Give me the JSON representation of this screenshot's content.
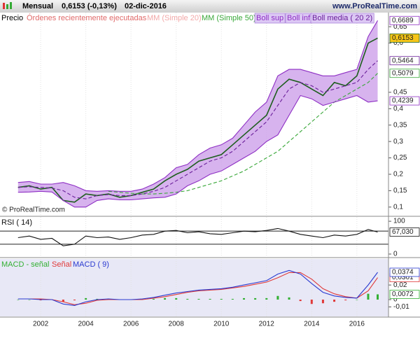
{
  "header": {
    "period": "Mensual",
    "quote": "0,6153 (-0,13%)",
    "date": "02-dic-2016",
    "site": "www.ProRealTime.com",
    "copyright": "© ProRealTime.com",
    "orders": "Órdenes recientemente ejecutadas",
    "mm20": "MM (Simple 20)"
  },
  "chart_data": [
    {
      "type": "line",
      "x": [
        2001,
        2001.5,
        2002,
        2002.5,
        2003,
        2003.5,
        2004,
        2004.5,
        2005,
        2005.5,
        2006,
        2006.5,
        2007,
        2007.5,
        2008,
        2008.5,
        2009,
        2009.5,
        2010,
        2010.5,
        2011,
        2011.5,
        2012,
        2012.5,
        2013,
        2013.5,
        2014,
        2014.5,
        2015,
        2015.5,
        2016,
        2016.5,
        2016.92
      ],
      "xlim": [
        2000.2,
        2017.4
      ],
      "ylim": [
        0.074,
        0.693
      ],
      "yticks": [
        {
          "value": 0.1,
          "label": "0,1"
        },
        {
          "value": 0.15,
          "label": "0,15"
        },
        {
          "value": 0.2,
          "label": "0,2"
        },
        {
          "value": 0.25,
          "label": "0,25"
        },
        {
          "value": 0.3,
          "label": "0,3"
        },
        {
          "value": 0.35,
          "label": "0,35"
        },
        {
          "value": 0.4,
          "label": "0,4"
        },
        {
          "value": 0.45,
          "label": "0,45"
        },
        {
          "value": 0.6,
          "label": "0,6"
        },
        {
          "value": 0.65,
          "label": "0,65"
        }
      ],
      "series": [
        {
          "name": "Precio",
          "color": "#1d5e1d",
          "label_bg": "#f5c518",
          "last_label": "0,6153",
          "values": [
            0.16,
            0.165,
            0.155,
            0.16,
            0.12,
            0.115,
            0.14,
            0.135,
            0.14,
            0.13,
            0.135,
            0.145,
            0.155,
            0.18,
            0.2,
            0.215,
            0.24,
            0.25,
            0.26,
            0.29,
            0.32,
            0.35,
            0.38,
            0.46,
            0.49,
            0.48,
            0.46,
            0.44,
            0.48,
            0.47,
            0.5,
            0.6,
            0.6153
          ]
        },
        {
          "name": "MM (Simple 50)",
          "color": "#3aa83a",
          "label_bg": "#ffffff",
          "last_label": "0,5079",
          "dashed": true,
          "values": [
            null,
            null,
            null,
            null,
            null,
            null,
            null,
            null,
            0.148,
            0.145,
            0.142,
            0.14,
            0.14,
            0.142,
            0.145,
            0.15,
            0.16,
            0.17,
            0.18,
            0.195,
            0.21,
            0.23,
            0.25,
            0.27,
            0.3,
            0.33,
            0.36,
            0.39,
            0.42,
            0.44,
            0.46,
            0.48,
            0.5079
          ]
        },
        {
          "name": "Boll sup",
          "color": "#8e2fc4",
          "label_bg": "#ffffff",
          "last_label": "0,6689",
          "values": [
            0.175,
            0.178,
            0.17,
            0.17,
            0.175,
            0.165,
            0.15,
            0.148,
            0.15,
            0.148,
            0.148,
            0.155,
            0.17,
            0.19,
            0.22,
            0.23,
            0.26,
            0.28,
            0.29,
            0.31,
            0.35,
            0.39,
            0.42,
            0.5,
            0.52,
            0.52,
            0.51,
            0.5,
            0.5,
            0.51,
            0.52,
            0.62,
            0.6689
          ]
        },
        {
          "name": "Boll inf",
          "color": "#8e2fc4",
          "label_bg": "#ffffff",
          "last_label": "0,4239",
          "values": [
            0.145,
            0.146,
            0.148,
            0.146,
            0.12,
            0.1,
            0.1,
            0.12,
            0.125,
            0.122,
            0.122,
            0.125,
            0.128,
            0.13,
            0.14,
            0.165,
            0.18,
            0.2,
            0.21,
            0.23,
            0.25,
            0.27,
            0.3,
            0.32,
            0.38,
            0.44,
            0.43,
            0.41,
            0.42,
            0.43,
            0.44,
            0.42,
            0.4239
          ]
        },
        {
          "name": "Boll media ( 20 2)",
          "color": "#6a1f9a",
          "label_bg": "#ffffff",
          "last_label": "0,5464",
          "dashed": true,
          "values": [
            0.16,
            0.162,
            0.16,
            0.158,
            0.15,
            0.13,
            0.125,
            0.135,
            0.138,
            0.135,
            0.135,
            0.14,
            0.148,
            0.16,
            0.18,
            0.2,
            0.22,
            0.24,
            0.25,
            0.27,
            0.3,
            0.33,
            0.36,
            0.41,
            0.46,
            0.48,
            0.47,
            0.45,
            0.46,
            0.47,
            0.48,
            0.52,
            0.5464
          ]
        }
      ],
      "band_color": "#c99ae8"
    },
    {
      "type": "line",
      "x": [
        2001,
        2001.5,
        2002,
        2002.5,
        2003,
        2003.5,
        2004,
        2004.5,
        2005,
        2005.5,
        2006,
        2006.5,
        2007,
        2007.5,
        2008,
        2008.5,
        2009,
        2009.5,
        2010,
        2010.5,
        2011,
        2011.5,
        2012,
        2012.5,
        2013,
        2013.5,
        2014,
        2014.5,
        2015,
        2015.5,
        2016,
        2016.5,
        2016.92
      ],
      "xlim": [
        2000.2,
        2017.4
      ],
      "ylim": [
        -6.5,
        113
      ],
      "yticks": [
        0,
        100
      ],
      "levels": [
        30,
        70
      ],
      "series": [
        {
          "name": "RSI ( 14)",
          "color": "#111111",
          "label_bg": "#ffffff",
          "last_label": "67,030",
          "values": [
            50,
            55,
            45,
            48,
            25,
            30,
            55,
            50,
            52,
            45,
            50,
            58,
            60,
            70,
            72,
            65,
            68,
            62,
            60,
            65,
            70,
            68,
            72,
            78,
            70,
            60,
            55,
            50,
            58,
            55,
            60,
            75,
            67.03
          ]
        }
      ]
    },
    {
      "type": "macd",
      "x": [
        2001,
        2001.5,
        2002,
        2002.5,
        2003,
        2003.5,
        2004,
        2004.5,
        2005,
        2005.5,
        2006,
        2006.5,
        2007,
        2007.5,
        2008,
        2008.5,
        2009,
        2009.5,
        2010,
        2010.5,
        2011,
        2011.5,
        2012,
        2012.5,
        2013,
        2013.5,
        2014,
        2014.5,
        2015,
        2015.5,
        2016,
        2016.5,
        2016.92
      ],
      "xlim": [
        2000.2,
        2017.4
      ],
      "xticks": [
        2002,
        2004,
        2006,
        2008,
        2010,
        2012,
        2014,
        2016
      ],
      "ylim": [
        -0.023,
        0.0556
      ],
      "yticks": [
        {
          "value": 0.02,
          "label": "0,02"
        },
        {
          "value": 0,
          "label": "0"
        },
        {
          "value": -0.01,
          "label": "-0,01"
        }
      ],
      "series": [
        {
          "name": "MACD - señal",
          "color": "#33b033",
          "negative_color": "#e03a3a",
          "label_bg": "#ffffff",
          "last_label": "0,0072",
          "bars": true,
          "values": [
            0,
            0,
            -0.001,
            0,
            -0.003,
            -0.001,
            0.002,
            0.001,
            0.001,
            0,
            0,
            0.001,
            0.001,
            0.002,
            0.002,
            0.001,
            0.001,
            0.001,
            0.001,
            0.001,
            0.002,
            0.002,
            0.002,
            0.005,
            0.003,
            -0.002,
            -0.006,
            -0.005,
            -0.003,
            -0.001,
            0,
            0.008,
            0.0072
          ]
        },
        {
          "name": "Señal",
          "color": "#e03a3a",
          "label_bg": "#ffffff",
          "last_label": "0,0301",
          "values": [
            0.001,
            0.001,
            0.001,
            0,
            -0.003,
            -0.007,
            -0.005,
            -0.001,
            0,
            0,
            0,
            0,
            0.002,
            0.004,
            0.007,
            0.01,
            0.012,
            0.013,
            0.014,
            0.016,
            0.018,
            0.021,
            0.024,
            0.03,
            0.037,
            0.037,
            0.028,
            0.015,
            0.008,
            0.004,
            0.002,
            0.012,
            0.0301
          ]
        },
        {
          "name": "MACD ( 9)",
          "color": "#2a3ad0",
          "label_bg": "#ffffff",
          "last_label": "0,0374",
          "values": [
            0.001,
            0.001,
            0,
            0,
            -0.006,
            -0.008,
            -0.003,
            0,
            0.001,
            0,
            0,
            0.001,
            0.003,
            0.006,
            0.009,
            0.011,
            0.013,
            0.014,
            0.015,
            0.017,
            0.02,
            0.023,
            0.026,
            0.035,
            0.04,
            0.035,
            0.022,
            0.01,
            0.005,
            0.003,
            0.002,
            0.02,
            0.0374
          ]
        }
      ]
    }
  ]
}
